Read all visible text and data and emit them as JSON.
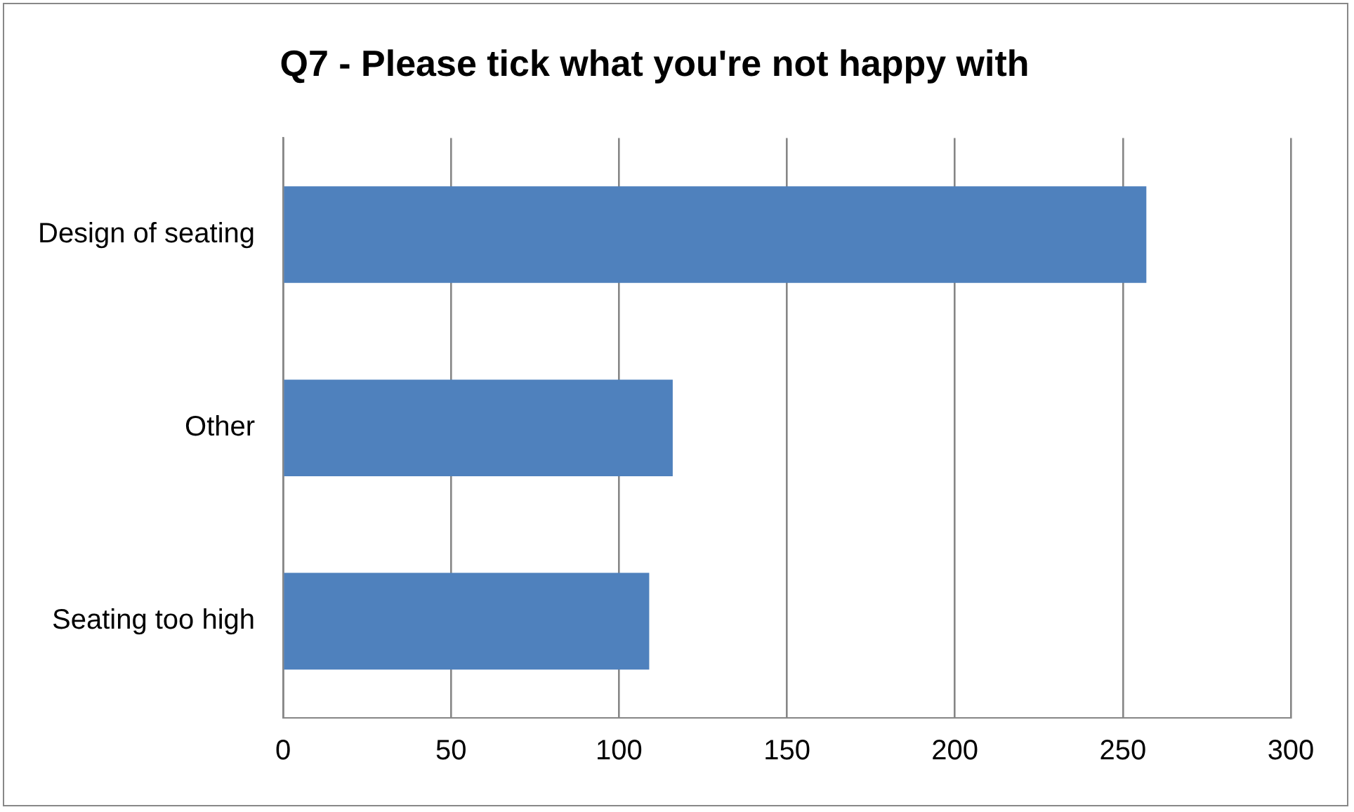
{
  "chart_data": {
    "type": "bar",
    "orientation": "horizontal",
    "title": "Q7 - Please tick what you're not happy with",
    "categories": [
      "Design of seating",
      "Other",
      "Seating too high"
    ],
    "values": [
      257,
      116,
      109
    ],
    "color": "#4f81bd",
    "xlim": [
      0,
      300
    ],
    "xticks": [
      0,
      50,
      100,
      150,
      200,
      250,
      300
    ],
    "grid": "x",
    "legend": false
  }
}
